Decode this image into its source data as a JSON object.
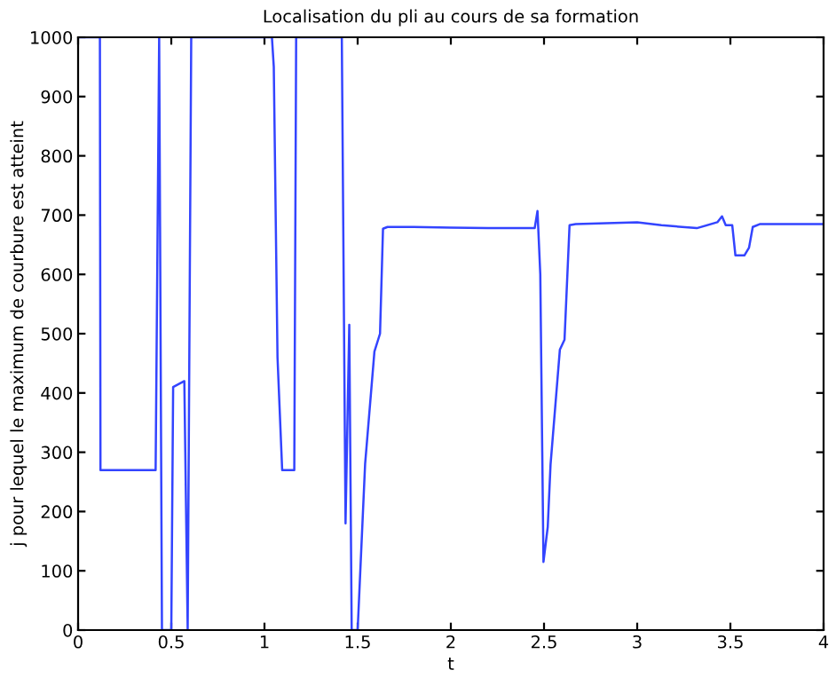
{
  "chart_data": {
    "type": "line",
    "title": "Localisation du pli au cours de sa formation",
    "xlabel": "t",
    "ylabel": "j pour lequel le maximum de courbure est atteint",
    "x": [
      0,
      0.117,
      0.12,
      0.416,
      0.435,
      0.45,
      0.5,
      0.51,
      0.57,
      0.588,
      0.607,
      1.04,
      1.05,
      1.07,
      1.095,
      1.16,
      1.17,
      1.415,
      1.435,
      1.455,
      1.468,
      1.5,
      1.54,
      1.59,
      1.62,
      1.636,
      1.66,
      1.8,
      2.0,
      2.2,
      2.45,
      2.465,
      2.48,
      2.497,
      2.52,
      2.535,
      2.585,
      2.61,
      2.637,
      2.67,
      3.0,
      3.13,
      3.32,
      3.43,
      3.455,
      3.475,
      3.51,
      3.527,
      3.575,
      3.6,
      3.62,
      3.66,
      4.0
    ],
    "series": [
      {
        "color": "#3344ff",
        "values": [
          1000,
          1000,
          270,
          270,
          1000,
          0,
          0,
          410,
          420,
          0,
          1000,
          1000,
          950,
          460,
          270,
          270,
          1000,
          1000,
          180,
          515,
          0,
          0,
          280,
          470,
          500,
          677,
          680,
          680,
          679,
          678,
          678,
          707,
          600,
          115,
          174,
          279,
          473,
          490,
          683,
          685,
          688,
          683,
          678,
          688,
          698,
          683,
          683,
          632,
          632,
          645,
          680,
          685,
          685
        ]
      }
    ],
    "xlim": [
      0,
      4
    ],
    "ylim": [
      0,
      1000
    ],
    "xticks": [
      0,
      0.5,
      1,
      1.5,
      2,
      2.5,
      3,
      3.5,
      4
    ],
    "yticks": [
      0,
      100,
      200,
      300,
      400,
      500,
      600,
      700,
      800,
      900,
      1000
    ],
    "grid": false,
    "legend": false,
    "marker": "none",
    "line_style": "solid"
  }
}
